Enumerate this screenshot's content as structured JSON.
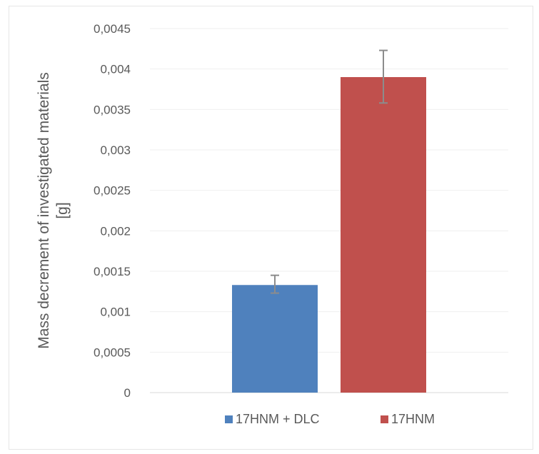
{
  "chart_data": {
    "type": "bar",
    "title": "",
    "ylabel_lines": [
      "Mass decrement of investigated materials",
      "[g]"
    ],
    "xlabel": "",
    "ylim": [
      0,
      0.0045
    ],
    "y_ticks": [
      0,
      0.0005,
      0.001,
      0.0015,
      0.002,
      0.0025,
      0.003,
      0.0035,
      0.004,
      0.0045
    ],
    "y_tick_labels": [
      "0",
      "0,0005",
      "0,001",
      "0,0015",
      "0,002",
      "0,0025",
      "0,003",
      "0,0035",
      "0,004",
      "0,0045"
    ],
    "grid": true,
    "legend_position": "bottom",
    "series": [
      {
        "name": "17HNM + DLC",
        "value": 0.00133,
        "error_low": 0.00123,
        "error_high": 0.00145,
        "color": "#4f81bd"
      },
      {
        "name": "17HNM",
        "value": 0.0039,
        "error_low": 0.00358,
        "error_high": 0.00423,
        "color": "#c0504d"
      }
    ]
  }
}
